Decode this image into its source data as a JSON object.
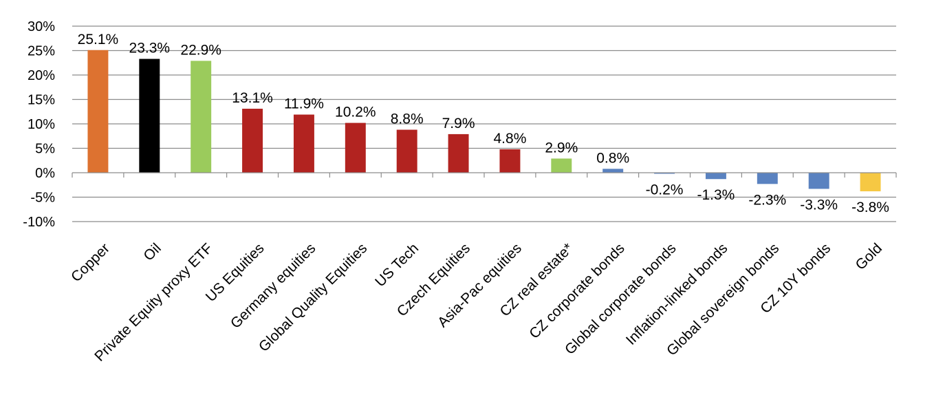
{
  "chart_data": {
    "type": "bar",
    "categories": [
      "Copper",
      "Oil",
      "Private Equity proxy ETF",
      "US Equities",
      "Germany equities",
      "Global Quality Equities",
      "US Tech",
      "Czech Equities",
      "Asia-Pac equities",
      "CZ real estate*",
      "CZ corporate bonds",
      "Global corporate bonds",
      "Inflation-linked bonds",
      "Global sovereign bonds",
      "CZ 10Y bonds",
      "Gold"
    ],
    "values": [
      25.1,
      23.3,
      22.9,
      13.1,
      11.9,
      10.2,
      8.8,
      7.9,
      4.8,
      2.9,
      0.8,
      -0.2,
      -1.3,
      -2.3,
      -3.3,
      -3.8
    ],
    "data_labels": [
      "25.1%",
      "23.3%",
      "22.9%",
      "13.1%",
      "11.9%",
      "10.2%",
      "8.8%",
      "7.9%",
      "4.8%",
      "2.9%",
      "0.8%",
      "-0.2%",
      "-1.3%",
      "-2.3%",
      "-3.3%",
      "-3.8%"
    ],
    "colors": [
      "#DD7230",
      "#000000",
      "#9BCB5C",
      "#B22320",
      "#B22320",
      "#B22320",
      "#B22320",
      "#B22320",
      "#B22320",
      "#9BCB5C",
      "#5A82C0",
      "#5A82C0",
      "#5A82C0",
      "#5A82C0",
      "#5A82C0",
      "#F6C843"
    ],
    "y_ticks": [
      30,
      25,
      20,
      15,
      10,
      5,
      0,
      -5,
      -10
    ],
    "y_tick_labels": [
      "30%",
      "25%",
      "20%",
      "15%",
      "10%",
      "5%",
      "0%",
      "-5%",
      "-10%"
    ],
    "ylim": [
      -10,
      30
    ],
    "grid": true,
    "title": "",
    "xlabel": "",
    "ylabel": ""
  }
}
